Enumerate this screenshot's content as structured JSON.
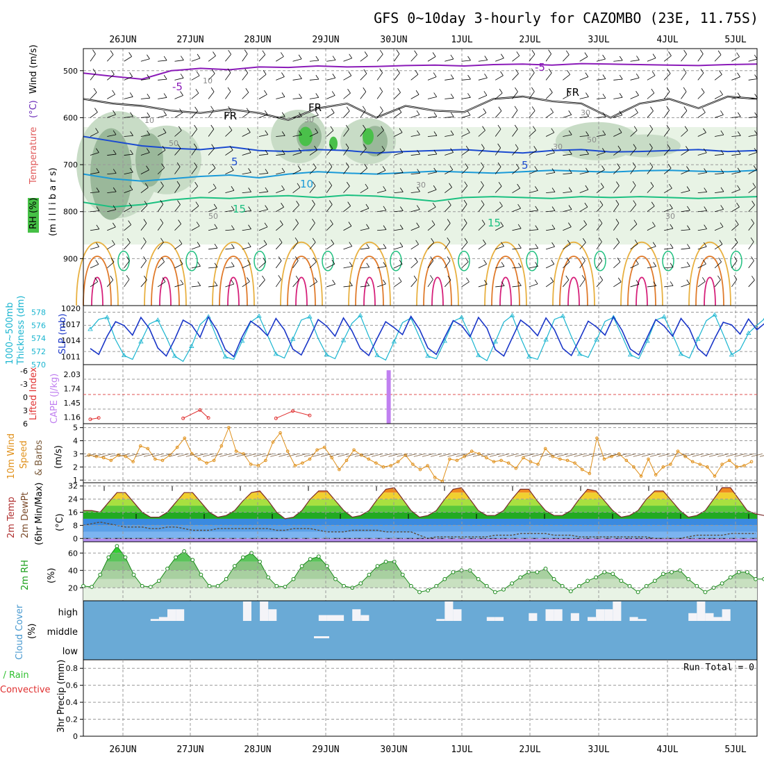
{
  "title": "GFS 0~10day 3-hourly for CAZOMBO (23E, 11.75S)",
  "chart_data": [
    {
      "type": "contour",
      "name": "upper_air",
      "x_labels": [
        "26JUN",
        "27JUN",
        "28JUN",
        "29JUN",
        "30JUN",
        "1JUL",
        "2JUL",
        "3JUL",
        "4JUL",
        "5JUL"
      ],
      "ylabel_parts": {
        "rh": "RH (%)",
        "temperature": "Temperature",
        "temp_unit": "(°C)",
        "wind": "Wind (m/s)",
        "pressure": "(m i l l i b a r s)"
      },
      "y_ticks": [
        500,
        600,
        700,
        800,
        900
      ],
      "ylim": [
        1000,
        450
      ],
      "rh_levels": [
        30,
        50,
        70,
        90
      ],
      "rh_labels": [
        "10",
        "10",
        "30",
        "30",
        "30",
        "30",
        "50",
        "50",
        "50",
        "30"
      ],
      "temperature_lines": [
        {
          "label": "-5",
          "values": [
            505,
            512,
            518,
            500,
            495,
            498,
            492,
            493,
            490,
            492,
            491,
            489,
            488,
            490,
            487,
            486,
            488,
            485,
            486,
            487,
            488,
            489,
            487,
            486
          ]
        },
        {
          "label": "FR",
          "values": [
            560,
            570,
            575,
            585,
            590,
            582,
            590,
            605,
            580,
            570,
            600,
            575,
            585,
            588,
            560,
            555,
            565,
            570,
            600,
            570,
            560,
            580,
            555,
            560
          ]
        },
        {
          "label": "5",
          "values": [
            640,
            650,
            660,
            665,
            668,
            662,
            670,
            672,
            668,
            670,
            675,
            672,
            670,
            668,
            672,
            675,
            670,
            668,
            673,
            672,
            670,
            668,
            672,
            670
          ]
        },
        {
          "label": "10",
          "values": [
            720,
            730,
            735,
            730,
            725,
            722,
            728,
            720,
            715,
            718,
            720,
            717,
            714,
            716,
            718,
            715,
            712,
            714,
            716,
            713,
            712,
            714,
            715,
            712
          ]
        },
        {
          "label": "15",
          "values": [
            780,
            790,
            785,
            775,
            770,
            772,
            768,
            766,
            770,
            765,
            767,
            772,
            778,
            770,
            768,
            770,
            772,
            768,
            770,
            768,
            770,
            772,
            770,
            768
          ]
        }
      ],
      "annotations": [
        "-5",
        "-5",
        "FR",
        "FR",
        "FR",
        "5",
        "5",
        "10",
        "15",
        "15"
      ]
    },
    {
      "type": "line",
      "name": "pressure_thickness",
      "ylabel_left": "1000~500mb Thickness (dm)",
      "ylabel_right": "SLP (mb)",
      "ylabel_parts": {
        "thickness": "1000~500mb",
        "thickness2": "Thickness (dm)",
        "slp": "SLP (mb)"
      },
      "left_ticks": [
        570,
        572,
        574,
        576,
        578
      ],
      "right_ticks": [
        1011,
        1014,
        1017,
        1020
      ],
      "left_ylim": [
        570,
        579
      ],
      "right_ylim": [
        1009.5,
        1020.5
      ],
      "series": [
        {
          "name": "Thickness (dm)",
          "values": [
            575.4,
            576.9,
            577.2,
            573.8,
            571.4,
            570.8,
            573.5,
            576.2,
            576.8,
            574.2,
            571.3,
            570.5,
            572.8,
            576.1,
            577.3,
            574.1,
            571.2,
            570.8,
            573.6,
            576.5,
            577.4,
            574.5,
            571.6,
            571.0,
            573.9,
            576.8,
            577.3,
            574.0,
            571.5,
            570.9,
            573.7,
            576.3,
            577.5,
            574.3,
            571.4,
            570.7,
            573.5,
            576.4,
            577.1,
            574.2,
            571.3,
            570.9,
            573.6,
            576.6,
            577.2,
            574.5,
            571.4,
            570.6,
            573.5,
            576.5,
            577.5,
            574.1,
            571.2,
            570.8,
            573.8,
            576.9,
            577.4,
            574.3,
            571.6,
            571.1,
            573.8,
            576.6,
            577.2,
            574.4,
            571.5,
            570.9,
            573.6,
            576.8,
            577.3,
            574.6,
            571.6,
            571.0,
            573.9,
            576.7,
            577.6,
            574.6,
            571.5,
            572.3,
            574.8,
            576.0,
            577.1
          ]
        },
        {
          "name": "SLP (mb)",
          "values": [
            1012.5,
            1011.4,
            1014.8,
            1017.5,
            1016.8,
            1015.0,
            1018.3,
            1016.2,
            1012.6,
            1011.1,
            1014.2,
            1017.8,
            1016.9,
            1014.6,
            1018.4,
            1015.9,
            1012.3,
            1011.0,
            1014.7,
            1017.6,
            1016.5,
            1014.9,
            1018.1,
            1016.0,
            1012.4,
            1011.3,
            1014.5,
            1017.9,
            1016.7,
            1014.8,
            1018.2,
            1015.8,
            1012.5,
            1011.2,
            1014.4,
            1017.5,
            1016.4,
            1015.1,
            1018.5,
            1016.1,
            1012.6,
            1011.4,
            1014.6,
            1017.7,
            1016.8,
            1014.7,
            1018.3,
            1016.3,
            1012.3,
            1011.1,
            1014.5,
            1017.8,
            1016.6,
            1014.9,
            1018.2,
            1016.0,
            1012.5,
            1011.2,
            1014.3,
            1017.6,
            1016.5,
            1015.0,
            1018.4,
            1015.9,
            1012.4,
            1011.3,
            1014.6,
            1017.9,
            1016.7,
            1014.8,
            1018.1,
            1016.2,
            1012.5,
            1011.1,
            1014.4,
            1017.4,
            1016.9,
            1015.2,
            1018.0,
            1016.0,
            1017.3
          ]
        }
      ]
    },
    {
      "type": "bar",
      "name": "cape_lifted_index",
      "ylabel_parts": {
        "li": "Lifted Index",
        "cape": "CAPE (J/kg)"
      },
      "left_ticks": [
        "-6",
        "-3",
        "0",
        "3",
        "6"
      ],
      "right_ticks": [
        "2.03",
        "1.74",
        "1.45",
        "1.16"
      ],
      "cape_bar": {
        "time_step": 26,
        "value": 2.0
      },
      "lifted_index_points": [
        [
          0,
          5.1
        ],
        [
          1,
          4.8
        ],
        [
          11,
          4.9
        ],
        [
          13,
          3.2
        ],
        [
          14,
          4.8
        ],
        [
          22,
          4.9
        ],
        [
          24,
          3.4
        ],
        [
          26,
          4.3
        ]
      ]
    },
    {
      "type": "line",
      "name": "surface_wind",
      "ylabel_parts": {
        "l1": "10m Wind",
        "l2": "Speed",
        "l3": "& Barbs",
        "unit": "(m/s)"
      },
      "y_ticks": [
        1,
        2,
        3,
        4,
        5
      ],
      "ylim": [
        0.8,
        5.3
      ],
      "values": [
        2.9,
        2.8,
        2.7,
        2.5,
        2.9,
        2.8,
        2.4,
        3.6,
        3.4,
        2.6,
        2.5,
        2.9,
        3.5,
        4.2,
        3.0,
        2.6,
        2.3,
        2.5,
        3.6,
        5.0,
        3.2,
        3.0,
        2.2,
        2.1,
        2.5,
        3.9,
        4.6,
        3.2,
        2.1,
        2.3,
        2.6,
        3.3,
        3.5,
        2.7,
        1.8,
        2.5,
        3.3,
        2.9,
        2.6,
        2.3,
        2.0,
        2.1,
        2.4,
        2.9,
        2.2,
        1.8,
        2.1,
        1.2,
        0.9,
        2.6,
        2.5,
        2.8,
        3.2,
        3.0,
        2.7,
        2.4,
        2.5,
        2.3,
        1.9,
        2.7,
        2.4,
        2.2,
        3.4,
        2.8,
        2.6,
        2.5,
        2.3,
        1.8,
        1.5,
        4.2,
        2.6,
        2.8,
        3.0,
        2.5,
        2.0,
        1.3,
        2.6,
        1.4,
        2.0,
        2.2,
        3.2,
        2.8,
        2.4,
        2.2,
        2.0,
        1.3,
        2.2,
        2.5,
        2.0,
        2.1,
        2.4
      ]
    },
    {
      "type": "area",
      "name": "temperature_dewpoint",
      "ylabel_parts": {
        "l1": "2m Temp",
        "l2": "2m DewPt",
        "l3": "(6hr Min/Max)",
        "unit": "(°C)"
      },
      "y_ticks": [
        0,
        8,
        16,
        24,
        32
      ],
      "ylim": [
        -2,
        34
      ],
      "temp": [
        17,
        17,
        16,
        22,
        28,
        28,
        22,
        16,
        13,
        13,
        16,
        22,
        28,
        28,
        22,
        16,
        13,
        14,
        17,
        23,
        28,
        29,
        23,
        16,
        12,
        13,
        17,
        24,
        29,
        29,
        23,
        17,
        13,
        14,
        17,
        24,
        30,
        31,
        24,
        17,
        13,
        14,
        17,
        24,
        30,
        31,
        24,
        17,
        14,
        14,
        17,
        24,
        30,
        30,
        23,
        17,
        14,
        14,
        17,
        24,
        30,
        29,
        23,
        17,
        13,
        14,
        17,
        24,
        29,
        29,
        23,
        17,
        13,
        14,
        17,
        24,
        31,
        31,
        24,
        17,
        15,
        14
      ],
      "dew": [
        8,
        9,
        10,
        9,
        8,
        7,
        7,
        7,
        6,
        6,
        7,
        7,
        6,
        5,
        5,
        5,
        6,
        6,
        6,
        6,
        6,
        6,
        6,
        5,
        5,
        6,
        6,
        6,
        5,
        4,
        4,
        4,
        5,
        5,
        5,
        5,
        4,
        4,
        4,
        4,
        2,
        0,
        1,
        1,
        1,
        1,
        1,
        1,
        1,
        2,
        2,
        2,
        3,
        3,
        3,
        3,
        2,
        2,
        2,
        1,
        1,
        1,
        1,
        1,
        1,
        1,
        1,
        1,
        0,
        0,
        0,
        0,
        1,
        2,
        2,
        2,
        2,
        3,
        3,
        3,
        3
      ]
    },
    {
      "type": "area",
      "name": "relative_humidity",
      "ylabel": "2m RH",
      "unit": "(%)",
      "y_ticks": [
        20,
        40,
        60
      ],
      "ylim": [
        5,
        73
      ],
      "values": [
        22,
        21,
        35,
        55,
        68,
        55,
        35,
        22,
        21,
        28,
        42,
        55,
        62,
        52,
        35,
        22,
        22,
        30,
        45,
        55,
        60,
        50,
        32,
        22,
        21,
        30,
        45,
        53,
        56,
        45,
        30,
        22,
        20,
        25,
        35,
        45,
        50,
        50,
        35,
        22,
        15,
        17,
        22,
        30,
        38,
        40,
        40,
        30,
        22,
        15,
        18,
        25,
        32,
        38,
        38,
        42,
        30,
        22,
        16,
        22,
        28,
        32,
        38,
        36,
        28,
        22,
        15,
        22,
        28,
        36,
        38,
        40,
        30,
        22,
        15,
        20,
        25,
        32,
        38,
        38,
        30,
        30
      ]
    },
    {
      "type": "bar",
      "name": "cloud_cover",
      "ylabel_parts": {
        "l1": "Cloud Cover",
        "unit": "(%)"
      },
      "levels": [
        "high",
        "middle",
        "low"
      ],
      "high_cover": [
        0,
        0,
        0,
        0,
        0,
        0,
        0,
        0,
        0,
        0,
        0,
        0,
        0,
        0,
        0,
        0,
        0,
        0,
        0,
        0,
        0,
        0,
        0,
        0,
        0,
        0,
        0,
        0,
        0,
        0,
        0,
        0,
        0,
        0,
        0,
        0,
        0,
        0,
        0,
        0,
        0,
        0,
        0,
        0,
        0,
        0,
        0,
        0,
        0,
        0,
        0,
        0,
        0,
        0,
        0,
        0,
        0,
        0,
        0,
        0,
        0,
        0,
        0,
        0,
        0,
        0,
        0,
        0,
        0,
        0,
        0,
        0,
        0,
        0,
        0,
        0,
        0,
        0,
        0,
        0
      ],
      "middle_marks": [
        27,
        28,
        29
      ]
    },
    {
      "type": "bar",
      "name": "precipitation",
      "ylabel_parts": {
        "total": "Total / Rain",
        "conv": "Convective",
        "precip": "3hr Precip (mm)"
      },
      "y_ticks": [
        "0",
        "0.2",
        "0.4",
        "0.6",
        "0.8"
      ],
      "ylim": [
        0,
        0.9
      ],
      "run_total": "Run Total = 0",
      "values": []
    }
  ]
}
